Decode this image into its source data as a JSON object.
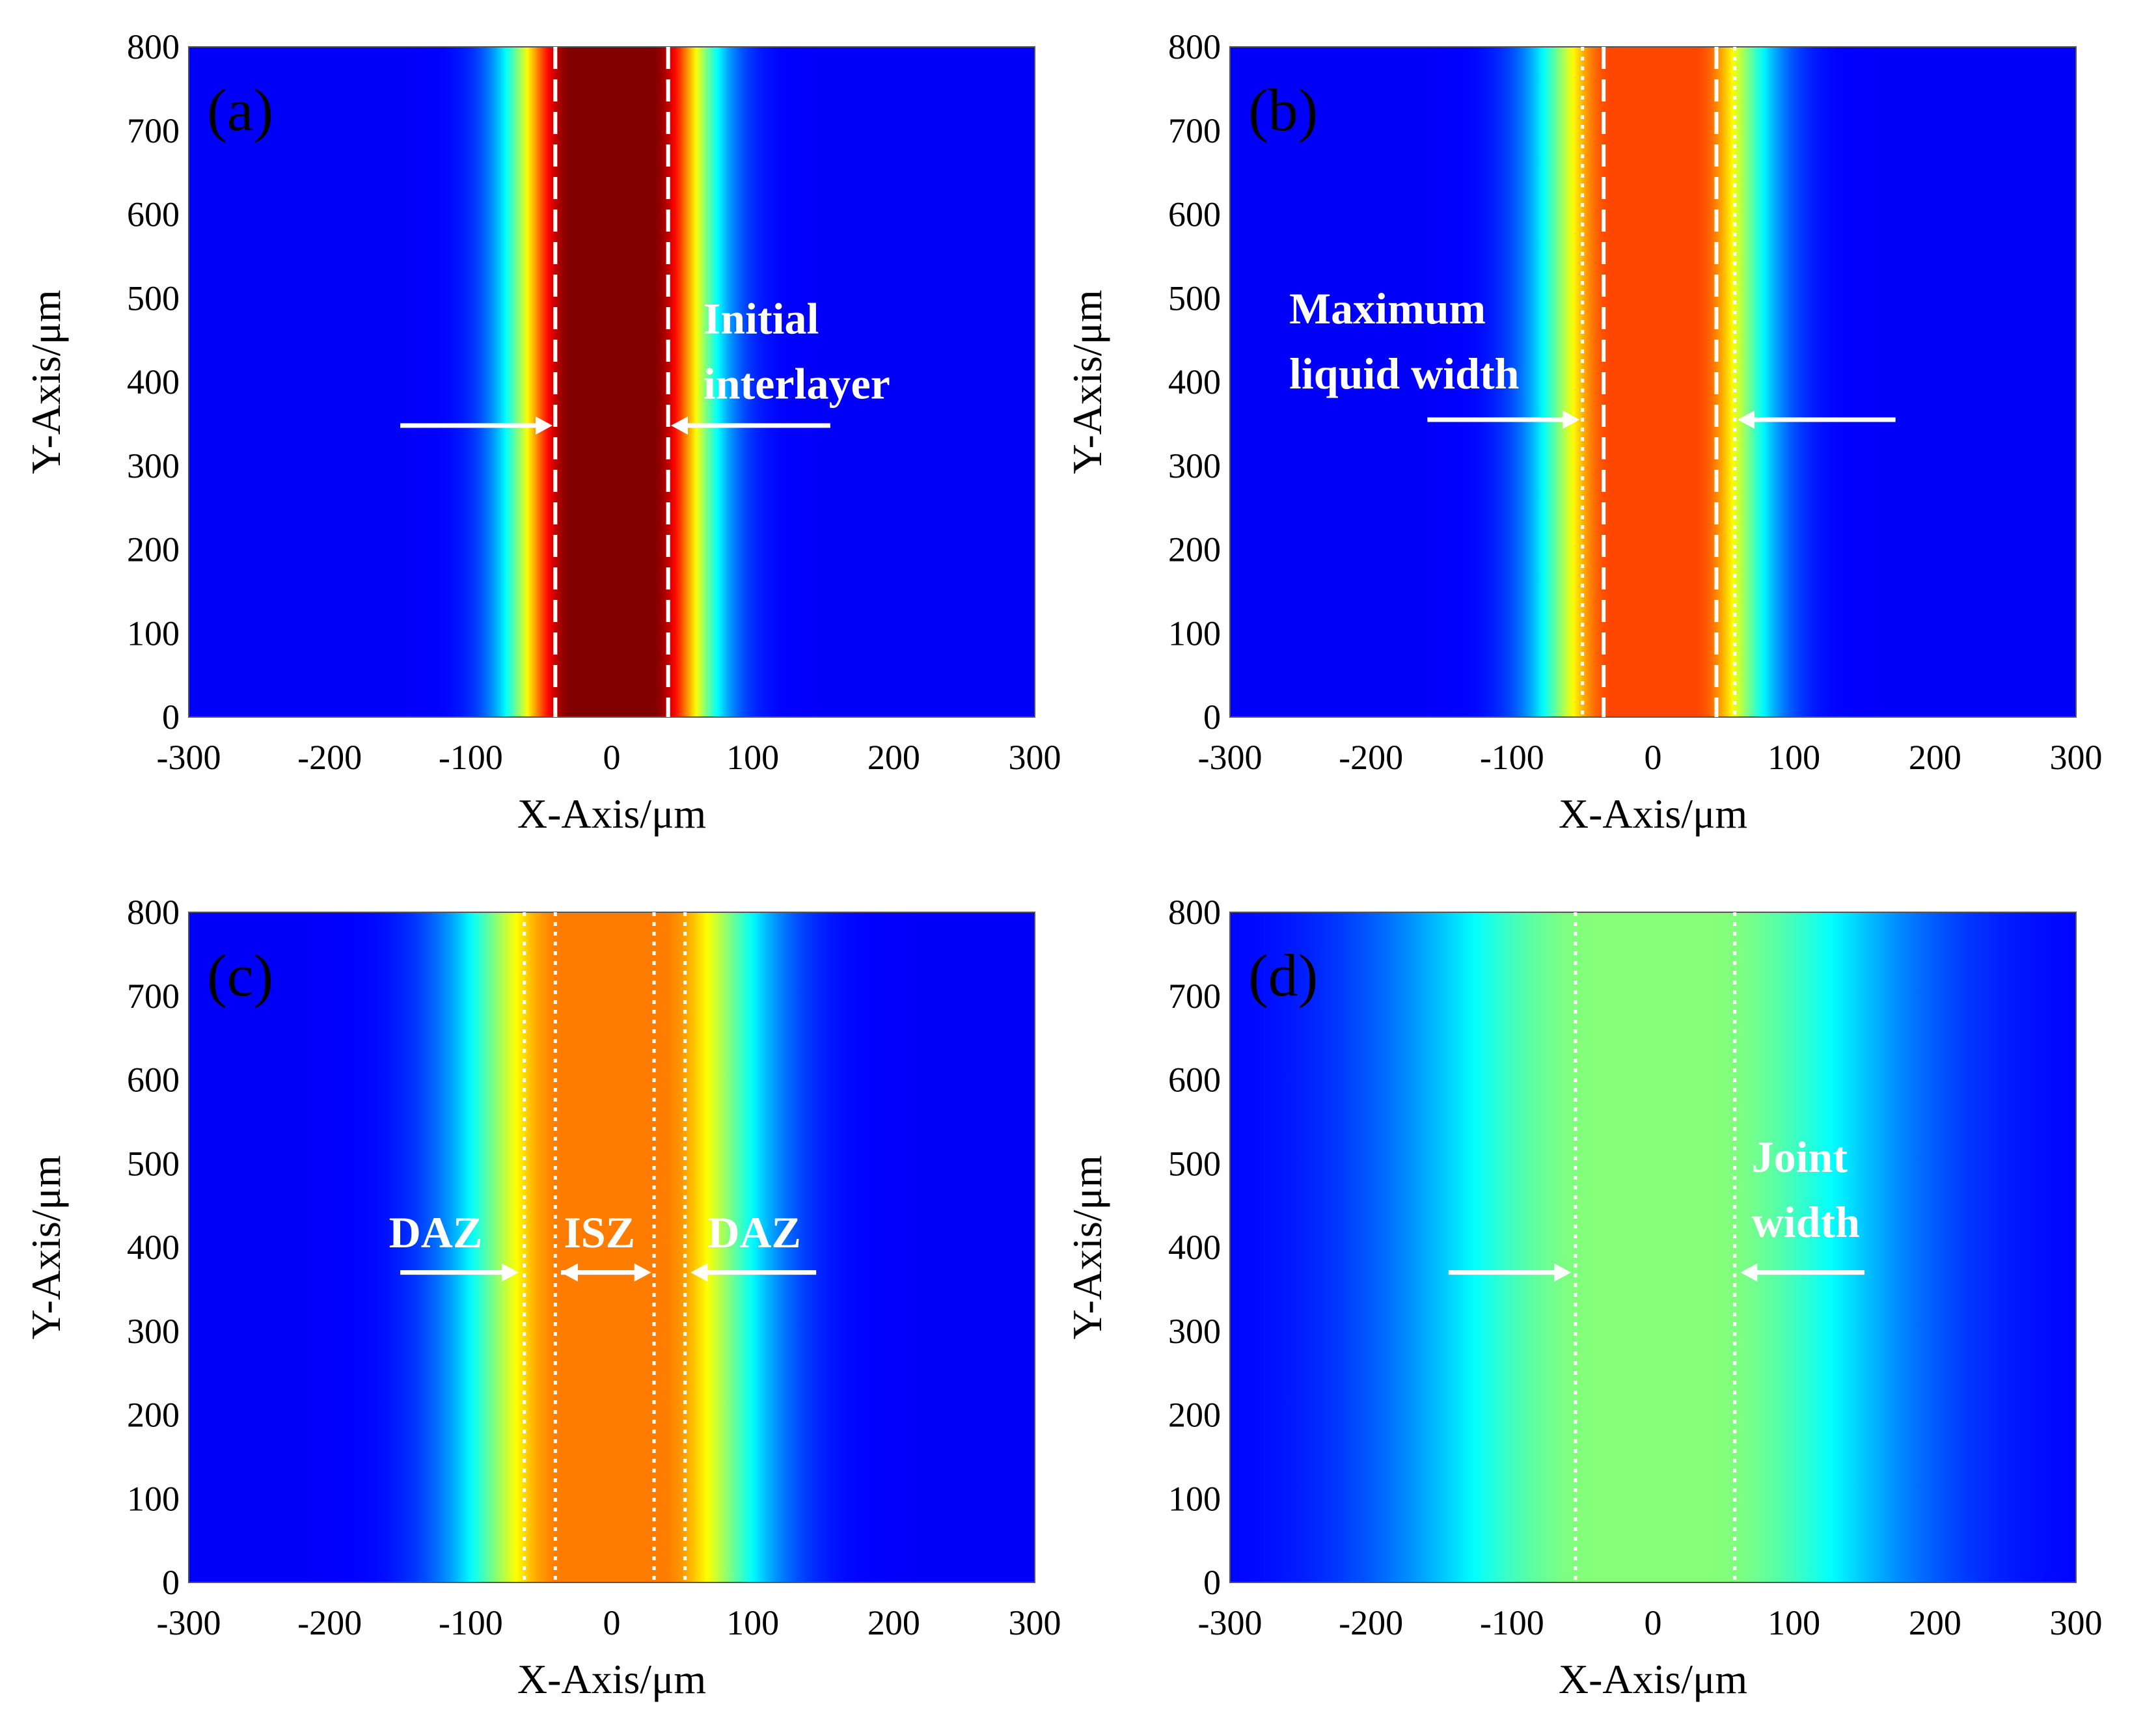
{
  "chart_data": [
    {
      "type": "heatmap",
      "panel": "(a)",
      "xlabel": "X-Axis/μm",
      "ylabel": "Y-Axis/μm",
      "xlim": [
        -300,
        300
      ],
      "ylim": [
        0,
        800
      ],
      "xticks": [
        "-300",
        "-200",
        "-100",
        "0",
        "100",
        "200",
        "300"
      ],
      "yticks": [
        "0",
        "100",
        "200",
        "300",
        "400",
        "500",
        "600",
        "700",
        "800"
      ],
      "colormap": "jet",
      "profile": {
        "peak": 1.0,
        "core_halfwidth_um": 28,
        "sigma_um": 30
      },
      "boundaries": [
        {
          "x_um": -40,
          "style": "dashed"
        },
        {
          "x_um": 40,
          "style": "dashed"
        }
      ],
      "annotations": [
        {
          "lines": [
            "Initial",
            "interlayer"
          ],
          "x_um": 65,
          "y_um": 458
        }
      ],
      "arrows": [
        {
          "from_x_um": -150,
          "to_x_um": -42,
          "y_um": 348
        },
        {
          "from_x_um": 155,
          "to_x_um": 42,
          "y_um": 348
        }
      ]
    },
    {
      "type": "heatmap",
      "panel": "(b)",
      "xlabel": "X-Axis/μm",
      "ylabel": "Y-Axis/μm",
      "xlim": [
        -300,
        300
      ],
      "ylim": [
        0,
        800
      ],
      "xticks": [
        "-300",
        "-200",
        "-100",
        "0",
        "100",
        "200",
        "300"
      ],
      "yticks": [
        "0",
        "100",
        "200",
        "300",
        "400",
        "500",
        "600",
        "700",
        "800"
      ],
      "colormap": "jet",
      "profile": {
        "peak": 0.78,
        "core_halfwidth_um": 30,
        "sigma_um": 34
      },
      "boundaries": [
        {
          "x_um": -50,
          "style": "dotted"
        },
        {
          "x_um": -35,
          "style": "dashed"
        },
        {
          "x_um": 45,
          "style": "dashed"
        },
        {
          "x_um": 58,
          "style": "dotted"
        }
      ],
      "annotations": [
        {
          "lines": [
            "Maximum",
            "liquid width"
          ],
          "x_um": -258,
          "y_um": 470
        }
      ],
      "arrows": [
        {
          "from_x_um": -160,
          "to_x_um": -52,
          "y_um": 355
        },
        {
          "from_x_um": 172,
          "to_x_um": 60,
          "y_um": 355
        }
      ]
    },
    {
      "type": "heatmap",
      "panel": "(c)",
      "xlabel": "X-Axis/μm",
      "ylabel": "Y-Axis/μm",
      "xlim": [
        -300,
        300
      ],
      "ylim": [
        0,
        800
      ],
      "xticks": [
        "-300",
        "-200",
        "-100",
        "0",
        "100",
        "200",
        "300"
      ],
      "yticks": [
        "0",
        "100",
        "200",
        "300",
        "400",
        "500",
        "600",
        "700",
        "800"
      ],
      "colormap": "jet",
      "profile": {
        "peak": 0.72,
        "core_halfwidth_um": 35,
        "sigma_um": 48
      },
      "boundaries": [
        {
          "x_um": -62,
          "style": "dotted"
        },
        {
          "x_um": -40,
          "style": "dotted"
        },
        {
          "x_um": 30,
          "style": "dotted"
        },
        {
          "x_um": 52,
          "style": "dotted"
        }
      ],
      "annotations": [
        {
          "lines": [
            "DAZ"
          ],
          "x_um": -158,
          "y_um": 400
        },
        {
          "lines": [
            "ISZ"
          ],
          "x_um": -34,
          "y_um": 400
        },
        {
          "lines": [
            "DAZ"
          ],
          "x_um": 68,
          "y_um": 400
        }
      ],
      "arrows": [
        {
          "from_x_um": -150,
          "to_x_um": -66,
          "y_um": 370
        },
        {
          "from_x_um": -36,
          "to_x_um": 28,
          "y_um": 370,
          "double": true
        },
        {
          "from_x_um": 145,
          "to_x_um": 56,
          "y_um": 370
        }
      ]
    },
    {
      "type": "heatmap",
      "panel": "(d)",
      "xlabel": "X-Axis/μm",
      "ylabel": "Y-Axis/μm",
      "xlim": [
        -300,
        300
      ],
      "ylim": [
        0,
        800
      ],
      "xticks": [
        "-300",
        "-200",
        "-100",
        "0",
        "100",
        "200",
        "300"
      ],
      "yticks": [
        "0",
        "100",
        "200",
        "300",
        "400",
        "500",
        "600",
        "700",
        "800"
      ],
      "colormap": "jet",
      "profile": {
        "peak": 0.44,
        "core_halfwidth_um": 40,
        "sigma_um": 95
      },
      "boundaries": [
        {
          "x_um": -55,
          "style": "dotted"
        },
        {
          "x_um": 58,
          "style": "dotted"
        }
      ],
      "annotations": [
        {
          "lines": [
            "Joint",
            "width"
          ],
          "x_um": 70,
          "y_um": 490
        }
      ],
      "arrows": [
        {
          "from_x_um": -145,
          "to_x_um": -58,
          "y_um": 370
        },
        {
          "from_x_um": 150,
          "to_x_um": 62,
          "y_um": 370
        }
      ]
    }
  ]
}
